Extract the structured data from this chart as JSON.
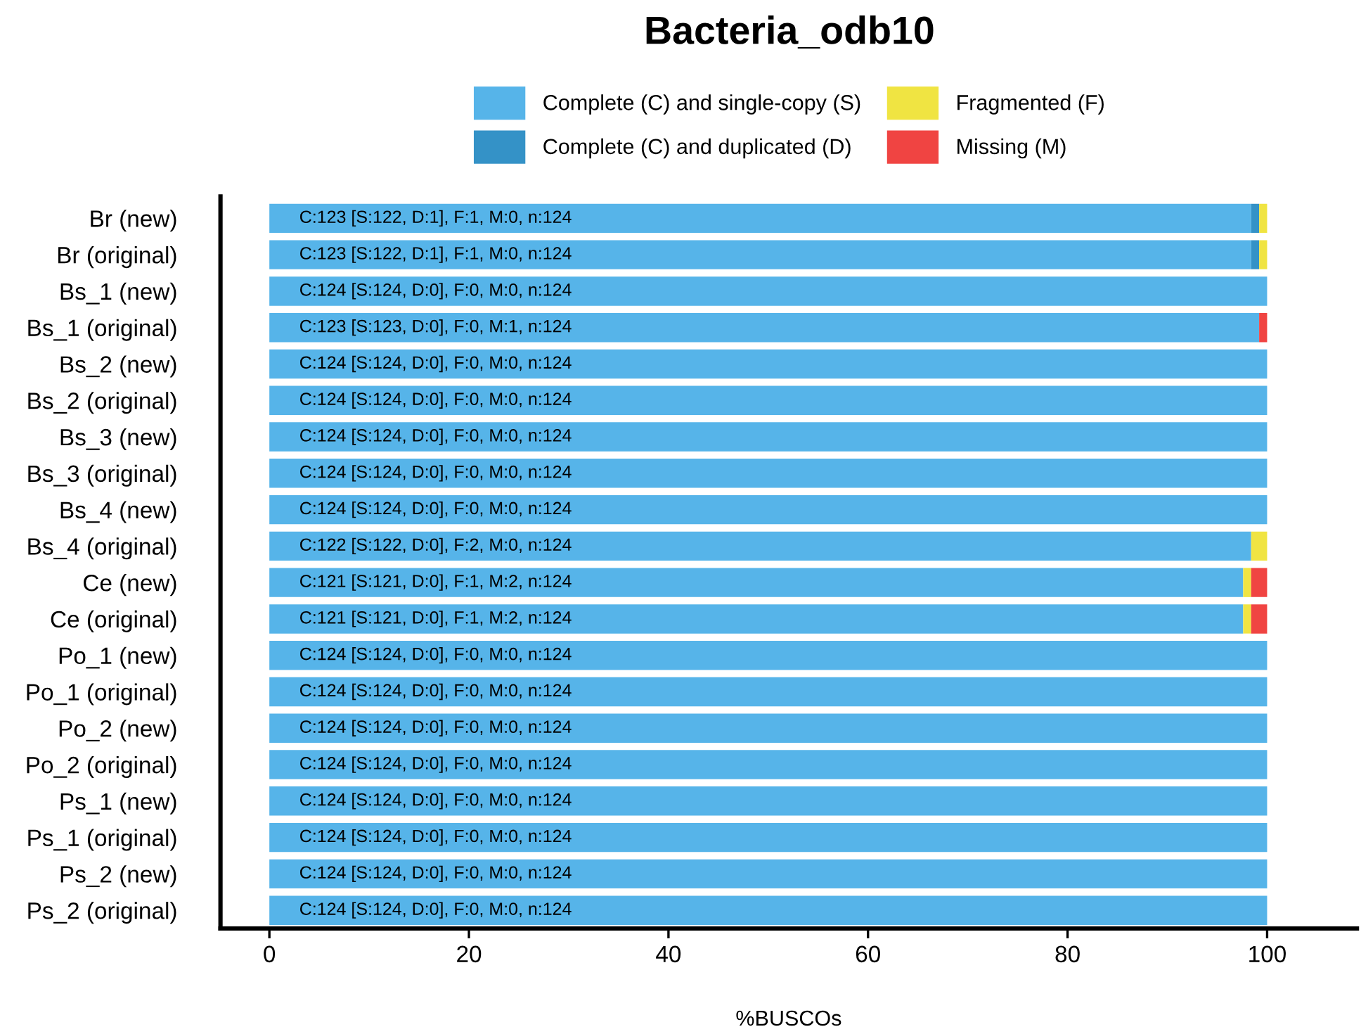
{
  "chart_data": {
    "type": "bar",
    "orientation": "horizontal",
    "stacked": true,
    "title": "Bacteria_odb10",
    "xlabel": "%BUSCOs",
    "categories": [
      "Br (new)",
      "Br (original)",
      "Bs_1 (new)",
      "Bs_1 (original)",
      "Bs_2 (new)",
      "Bs_2 (original)",
      "Bs_3 (new)",
      "Bs_3 (original)",
      "Bs_4 (new)",
      "Bs_4 (original)",
      "Ce (new)",
      "Ce (original)",
      "Po_1 (new)",
      "Po_1 (original)",
      "Po_2 (new)",
      "Po_2 (original)",
      "Ps_1 (new)",
      "Ps_1 (original)",
      "Ps_2 (new)",
      "Ps_2 (original)"
    ],
    "series": [
      {
        "name": "Complete (C) and single-copy (S)",
        "color": "#56b4e9",
        "values": [
          98.4,
          98.4,
          100,
          99.2,
          100,
          100,
          100,
          100,
          100,
          98.4,
          97.6,
          97.6,
          100,
          100,
          100,
          100,
          100,
          100,
          100,
          100
        ],
        "value_labels": [
          "C:123 [S:122, D:1], F:1, M:0, n:124",
          "C:123 [S:122, D:1], F:1, M:0, n:124",
          "C:124 [S:124, D:0], F:0, M:0, n:124",
          "C:123 [S:123, D:0], F:0, M:1, n:124",
          "C:124 [S:124, D:0], F:0, M:0, n:124",
          "C:124 [S:124, D:0], F:0, M:0, n:124",
          "C:124 [S:124, D:0], F:0, M:0, n:124",
          "C:124 [S:124, D:0], F:0, M:0, n:124",
          "C:124 [S:124, D:0], F:0, M:0, n:124",
          "C:122 [S:122, D:0], F:2, M:0, n:124",
          "C:121 [S:121, D:0], F:1, M:2, n:124",
          "C:121 [S:121, D:0], F:1, M:2, n:124",
          "C:124 [S:124, D:0], F:0, M:0, n:124",
          "C:124 [S:124, D:0], F:0, M:0, n:124",
          "C:124 [S:124, D:0], F:0, M:0, n:124",
          "C:124 [S:124, D:0], F:0, M:0, n:124",
          "C:124 [S:124, D:0], F:0, M:0, n:124",
          "C:124 [S:124, D:0], F:0, M:0, n:124",
          "C:124 [S:124, D:0], F:0, M:0, n:124",
          "C:124 [S:124, D:0], F:0, M:0, n:124"
        ]
      },
      {
        "name": "Complete (C) and duplicated (D)",
        "color": "#3492c7",
        "values": [
          0.8,
          0.8,
          0,
          0,
          0,
          0,
          0,
          0,
          0,
          0,
          0,
          0,
          0,
          0,
          0,
          0,
          0,
          0,
          0,
          0
        ]
      },
      {
        "name": "Fragmented (F)",
        "color": "#f0e442",
        "values": [
          0.8,
          0.8,
          0,
          0,
          0,
          0,
          0,
          0,
          0,
          1.6,
          0.8,
          0.8,
          0,
          0,
          0,
          0,
          0,
          0,
          0,
          0
        ]
      },
      {
        "name": "Missing (M)",
        "color": "#f04442",
        "values": [
          0,
          0,
          0,
          0.8,
          0,
          0,
          0,
          0,
          0,
          0,
          1.6,
          1.6,
          0,
          0,
          0,
          0,
          0,
          0,
          0,
          0
        ]
      }
    ],
    "xlim": [
      -4.9,
      109
    ],
    "xticks": [
      0,
      20,
      40,
      60,
      80,
      100
    ],
    "grid": false,
    "legend": "top"
  }
}
